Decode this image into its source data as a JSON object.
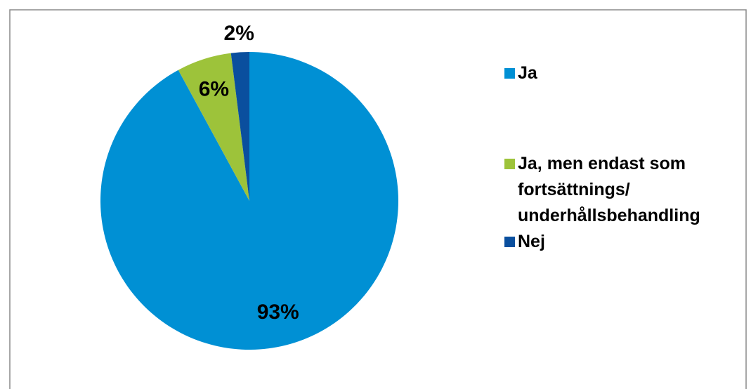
{
  "chart_data": {
    "type": "pie",
    "categories": [
      "Ja",
      "Ja, men endast som fortsättnings/ underhållsbehandling",
      "Nej"
    ],
    "values": [
      93,
      6,
      2
    ],
    "value_labels": [
      "93%",
      "6%",
      "2%"
    ],
    "colors": [
      "#0090d4",
      "#9dc33a",
      "#0a4f9e"
    ],
    "legend": "right"
  }
}
